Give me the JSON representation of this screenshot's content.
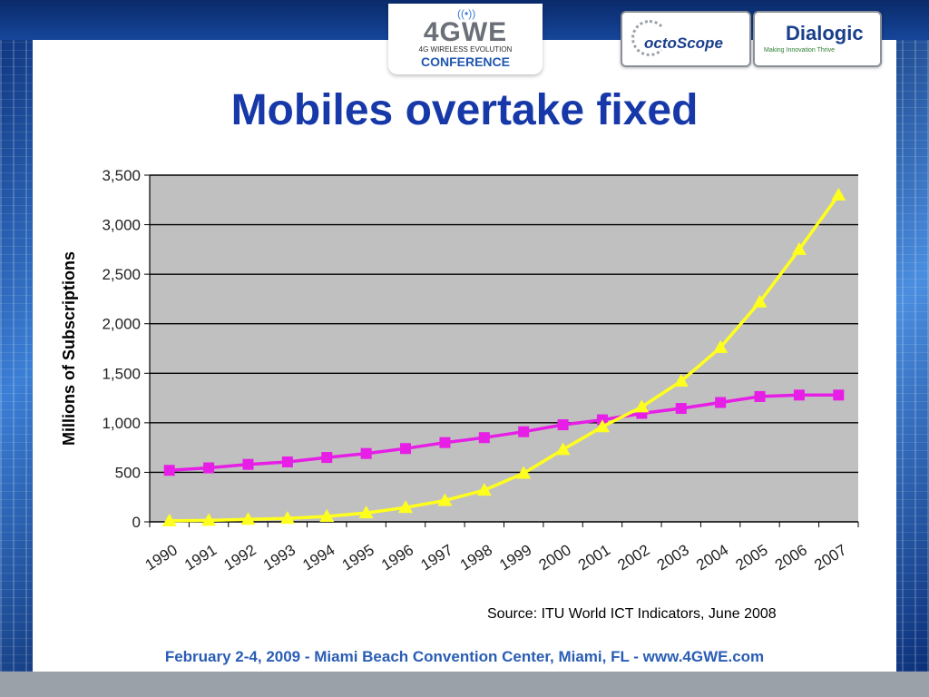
{
  "header": {
    "logo_main": "4GWE",
    "logo_sub": "4G WIRELESS EVOLUTION",
    "logo_conf": "CONFERENCE",
    "sponsor1": "octoScope",
    "sponsor2": "Dialogic",
    "sponsor2_tag": "Making Innovation Thrive"
  },
  "slide": {
    "title": "Mobiles overtake fixed",
    "source": "Source:  ITU World ICT Indicators, June 2008",
    "footer": "February 2-4, 2009  -  Miami Beach Convention Center, Miami, FL  -  www.4GWE.com"
  },
  "colors": {
    "plot_bg": "#c0c0c0",
    "fixed": "#e61ee6",
    "mobile": "#ffff1e",
    "title": "#1638a8"
  },
  "chart_data": {
    "type": "line",
    "ylabel": "Millions of Subscriptions",
    "ylim": [
      0,
      3500
    ],
    "yticks": [
      0,
      500,
      1000,
      1500,
      2000,
      2500,
      3000,
      3500
    ],
    "ytick_labels": [
      "0",
      "500",
      "1,000",
      "1,500",
      "2,000",
      "2,500",
      "3,000",
      "3,500"
    ],
    "categories": [
      "1990",
      "1991",
      "1992",
      "1993",
      "1994",
      "1995",
      "1996",
      "1997",
      "1998",
      "1999",
      "2000",
      "2001",
      "2002",
      "2003",
      "2004",
      "2005",
      "2006",
      "2007"
    ],
    "grid": true,
    "series": [
      {
        "marker": "square",
        "color": "#e61ee6",
        "values": [
          520,
          545,
          580,
          605,
          650,
          690,
          740,
          800,
          850,
          910,
          980,
          1030,
          1095,
          1145,
          1205,
          1265,
          1280,
          1280
        ]
      },
      {
        "marker": "triangle",
        "color": "#ffff1e",
        "values": [
          10,
          15,
          25,
          35,
          55,
          90,
          145,
          215,
          320,
          490,
          730,
          960,
          1160,
          1420,
          1760,
          2220,
          2750,
          3300
        ]
      }
    ]
  }
}
